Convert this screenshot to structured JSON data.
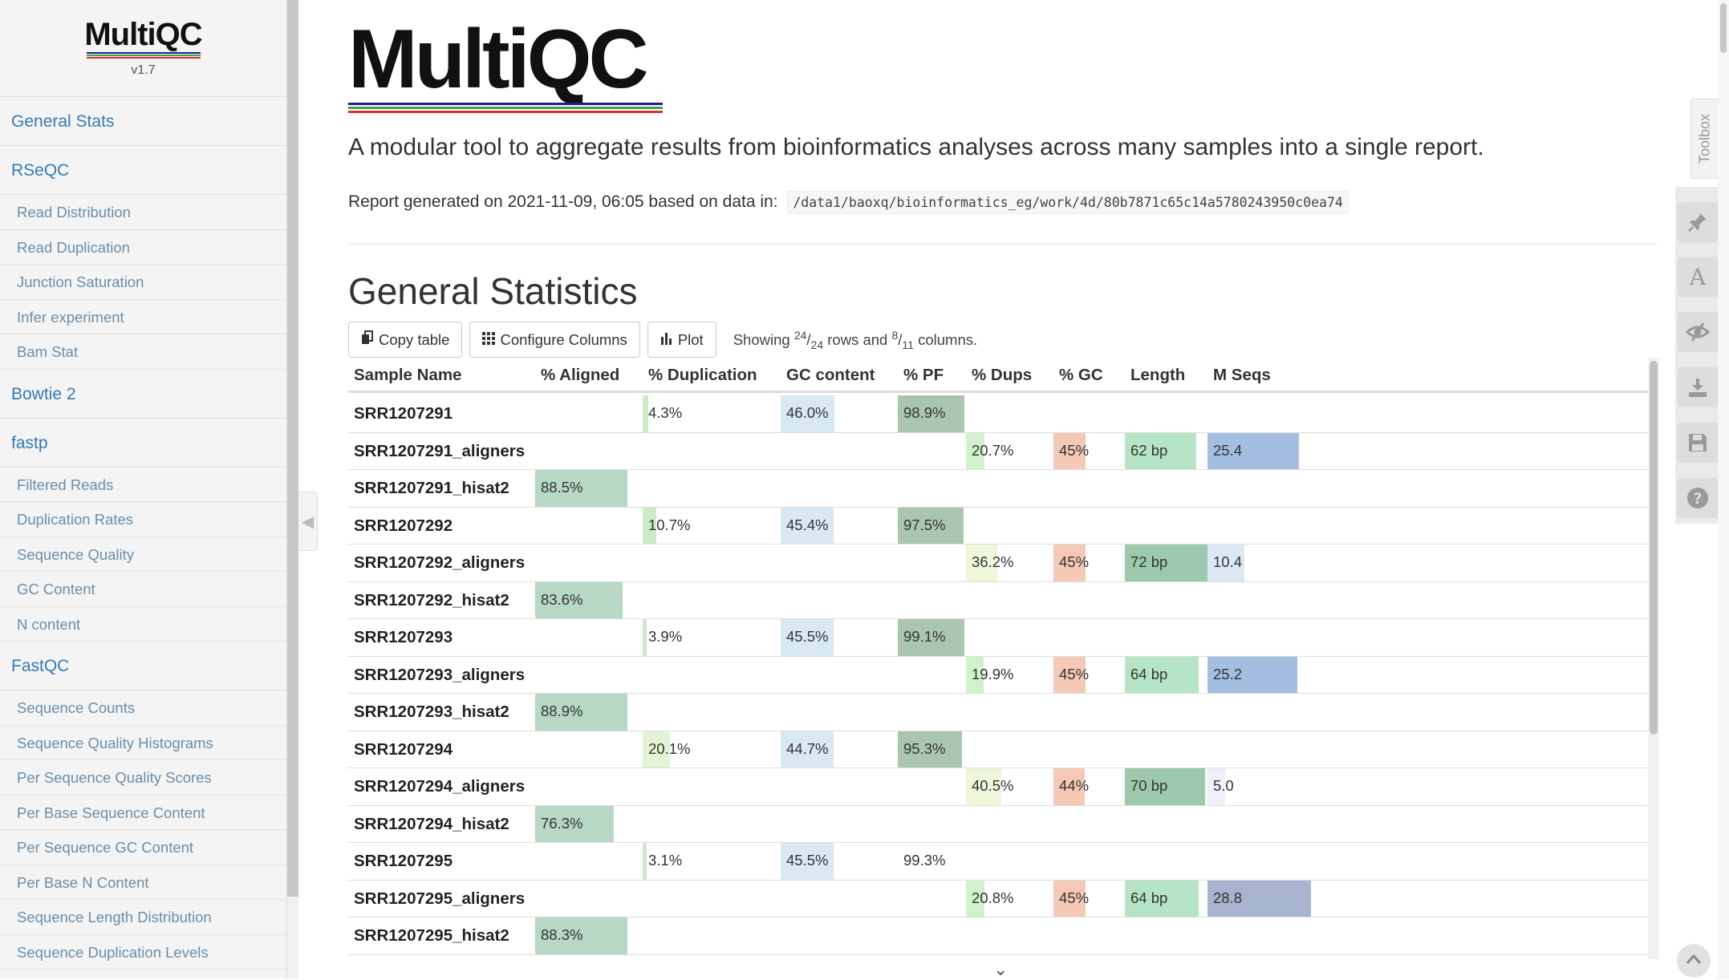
{
  "sidebar": {
    "logo_text": "MultiQC",
    "version": "v1.7",
    "items": [
      {
        "type": "section",
        "label": "General Stats"
      },
      {
        "type": "section",
        "label": "RSeQC"
      },
      {
        "type": "sub",
        "label": "Read Distribution"
      },
      {
        "type": "sub",
        "label": "Read Duplication"
      },
      {
        "type": "sub",
        "label": "Junction Saturation"
      },
      {
        "type": "sub",
        "label": "Infer experiment"
      },
      {
        "type": "sub",
        "label": "Bam Stat"
      },
      {
        "type": "section",
        "label": "Bowtie 2"
      },
      {
        "type": "section",
        "label": "fastp"
      },
      {
        "type": "sub",
        "label": "Filtered Reads"
      },
      {
        "type": "sub",
        "label": "Duplication Rates"
      },
      {
        "type": "sub",
        "label": "Sequence Quality"
      },
      {
        "type": "sub",
        "label": "GC Content"
      },
      {
        "type": "sub",
        "label": "N content"
      },
      {
        "type": "section",
        "label": "FastQC"
      },
      {
        "type": "sub",
        "label": "Sequence Counts"
      },
      {
        "type": "sub",
        "label": "Sequence Quality Histograms"
      },
      {
        "type": "sub",
        "label": "Per Sequence Quality Scores"
      },
      {
        "type": "sub",
        "label": "Per Base Sequence Content"
      },
      {
        "type": "sub",
        "label": "Per Sequence GC Content"
      },
      {
        "type": "sub",
        "label": "Per Base N Content"
      },
      {
        "type": "sub",
        "label": "Sequence Length Distribution"
      },
      {
        "type": "sub",
        "label": "Sequence Duplication Levels"
      }
    ]
  },
  "header": {
    "logo_text": "MultiQC",
    "tagline": "A modular tool to aggregate results from bioinformatics analyses across many samples into a single report.",
    "generated_prefix": "Report generated on 2021-11-09, 06:05 based on data in:",
    "data_path": "/data1/baoxq/bioinformatics_eg/work/4d/80b7871c65c14a5780243950c0ea74"
  },
  "general_stats": {
    "title": "General Statistics",
    "copy_label": "Copy table",
    "configure_label": "Configure Columns",
    "plot_label": "Plot",
    "showing": {
      "prefix": "Showing",
      "rows_shown": "24",
      "rows_total": "24",
      "rows_word": "rows and",
      "cols_shown": "8",
      "cols_total": "11",
      "cols_word": "columns."
    },
    "columns": [
      "Sample Name",
      "% Aligned",
      "% Duplication",
      "GC content",
      "% PF",
      "% Dups",
      "% GC",
      "Length",
      "M Seqs"
    ],
    "rows": [
      {
        "name": "SRR1207291",
        "aligned": "",
        "dup": "4.3%",
        "gc": "46.0%",
        "pf": "98.9%",
        "dups": "",
        "pgc": "",
        "len": "",
        "mseqs": ""
      },
      {
        "name": "SRR1207291_aligners",
        "aligned": "",
        "dup": "",
        "gc": "",
        "pf": "",
        "dups": "20.7%",
        "pgc": "45%",
        "len": "62 bp",
        "mseqs": "25.4"
      },
      {
        "name": "SRR1207291_hisat2",
        "aligned": "88.5%",
        "dup": "",
        "gc": "",
        "pf": "",
        "dups": "",
        "pgc": "",
        "len": "",
        "mseqs": ""
      },
      {
        "name": "SRR1207292",
        "aligned": "",
        "dup": "10.7%",
        "gc": "45.4%",
        "pf": "97.5%",
        "dups": "",
        "pgc": "",
        "len": "",
        "mseqs": ""
      },
      {
        "name": "SRR1207292_aligners",
        "aligned": "",
        "dup": "",
        "gc": "",
        "pf": "",
        "dups": "36.2%",
        "pgc": "45%",
        "len": "72 bp",
        "mseqs": "10.4"
      },
      {
        "name": "SRR1207292_hisat2",
        "aligned": "83.6%",
        "dup": "",
        "gc": "",
        "pf": "",
        "dups": "",
        "pgc": "",
        "len": "",
        "mseqs": ""
      },
      {
        "name": "SRR1207293",
        "aligned": "",
        "dup": "3.9%",
        "gc": "45.5%",
        "pf": "99.1%",
        "dups": "",
        "pgc": "",
        "len": "",
        "mseqs": ""
      },
      {
        "name": "SRR1207293_aligners",
        "aligned": "",
        "dup": "",
        "gc": "",
        "pf": "",
        "dups": "19.9%",
        "pgc": "45%",
        "len": "64 bp",
        "mseqs": "25.2"
      },
      {
        "name": "SRR1207293_hisat2",
        "aligned": "88.9%",
        "dup": "",
        "gc": "",
        "pf": "",
        "dups": "",
        "pgc": "",
        "len": "",
        "mseqs": ""
      },
      {
        "name": "SRR1207294",
        "aligned": "",
        "dup": "20.1%",
        "gc": "44.7%",
        "pf": "95.3%",
        "dups": "",
        "pgc": "",
        "len": "",
        "mseqs": ""
      },
      {
        "name": "SRR1207294_aligners",
        "aligned": "",
        "dup": "",
        "gc": "",
        "pf": "",
        "dups": "40.5%",
        "pgc": "44%",
        "len": "70 bp",
        "mseqs": "5.0"
      },
      {
        "name": "SRR1207294_hisat2",
        "aligned": "76.3%",
        "dup": "",
        "gc": "",
        "pf": "",
        "dups": "",
        "pgc": "",
        "len": "",
        "mseqs": ""
      },
      {
        "name": "SRR1207295",
        "aligned": "",
        "dup": "3.1%",
        "gc": "45.5%",
        "pf": "99.3%",
        "dups": "",
        "pgc": "",
        "len": "",
        "mseqs": ""
      },
      {
        "name": "SRR1207295_aligners",
        "aligned": "",
        "dup": "",
        "gc": "",
        "pf": "",
        "dups": "20.8%",
        "pgc": "45%",
        "len": "64 bp",
        "mseqs": "28.8"
      },
      {
        "name": "SRR1207295_hisat2",
        "aligned": "88.3%",
        "dup": "",
        "gc": "",
        "pf": "",
        "dups": "",
        "pgc": "",
        "len": "",
        "mseqs": ""
      }
    ],
    "bar_fill_fraction": {
      "aligned": {
        "88.5%": 0.86,
        "83.6%": 0.81,
        "88.9%": 0.86,
        "76.3%": 0.73,
        "88.3%": 0.86
      },
      "dup": {
        "4.3%": 0.04,
        "10.7%": 0.1,
        "3.9%": 0.03,
        "20.1%": 0.2,
        "3.1%": 0.03
      },
      "gc": {
        "46.0%": 0.46,
        "45.4%": 0.45,
        "45.5%": 0.45,
        "44.7%": 0.45
      },
      "pf": {
        "98.9%": 0.98,
        "97.5%": 0.96,
        "99.1%": 0.98,
        "95.3%": 0.94
      },
      "dups": {
        "20.7%": 0.21,
        "36.2%": 0.36,
        "19.9%": 0.2,
        "40.5%": 0.4,
        "20.8%": 0.21
      },
      "pgc": {
        "45%": 0.45,
        "44%": 0.44
      },
      "len": {
        "62 bp": 0.86,
        "72 bp": 1.0,
        "64 bp": 0.89,
        "70 bp": 0.97
      },
      "mseqs": {
        "25.4": 0.88,
        "10.4": 0.36,
        "25.2": 0.87,
        "5.0": 0.17,
        "28.8": 1.0
      }
    }
  },
  "toolbox": {
    "label": "Toolbox"
  },
  "colors": {
    "link": "#337ab7",
    "aligned": "#b7d8c4",
    "dup": "#ccebc5",
    "dup_high": "#e4f2d6",
    "gc": "#d8e9f3",
    "pf": "#aac6b0",
    "dups_low": "#d3efcf",
    "dups_high": "#eef7dc",
    "pgc": "#f5c9b5",
    "len": "#b6e4c7",
    "len_high": "#9cc9ae",
    "mseqs_high": "#a3bee0",
    "mseqs_mid": "#dce9f5",
    "mseqs_low": "#eef1f8",
    "mseqs_top": "#a7b4cf",
    "logo_lines": [
      "#1f1f8a",
      "#3fa24b",
      "#d03434"
    ]
  },
  "icons": [
    "copy-icon",
    "grid-icon",
    "bar-chart-icon",
    "pin-icon",
    "font-icon",
    "eye-icon",
    "download-icon",
    "save-icon",
    "help-icon",
    "chevron-up-icon",
    "chevron-left-icon",
    "chevron-down-icon"
  ]
}
